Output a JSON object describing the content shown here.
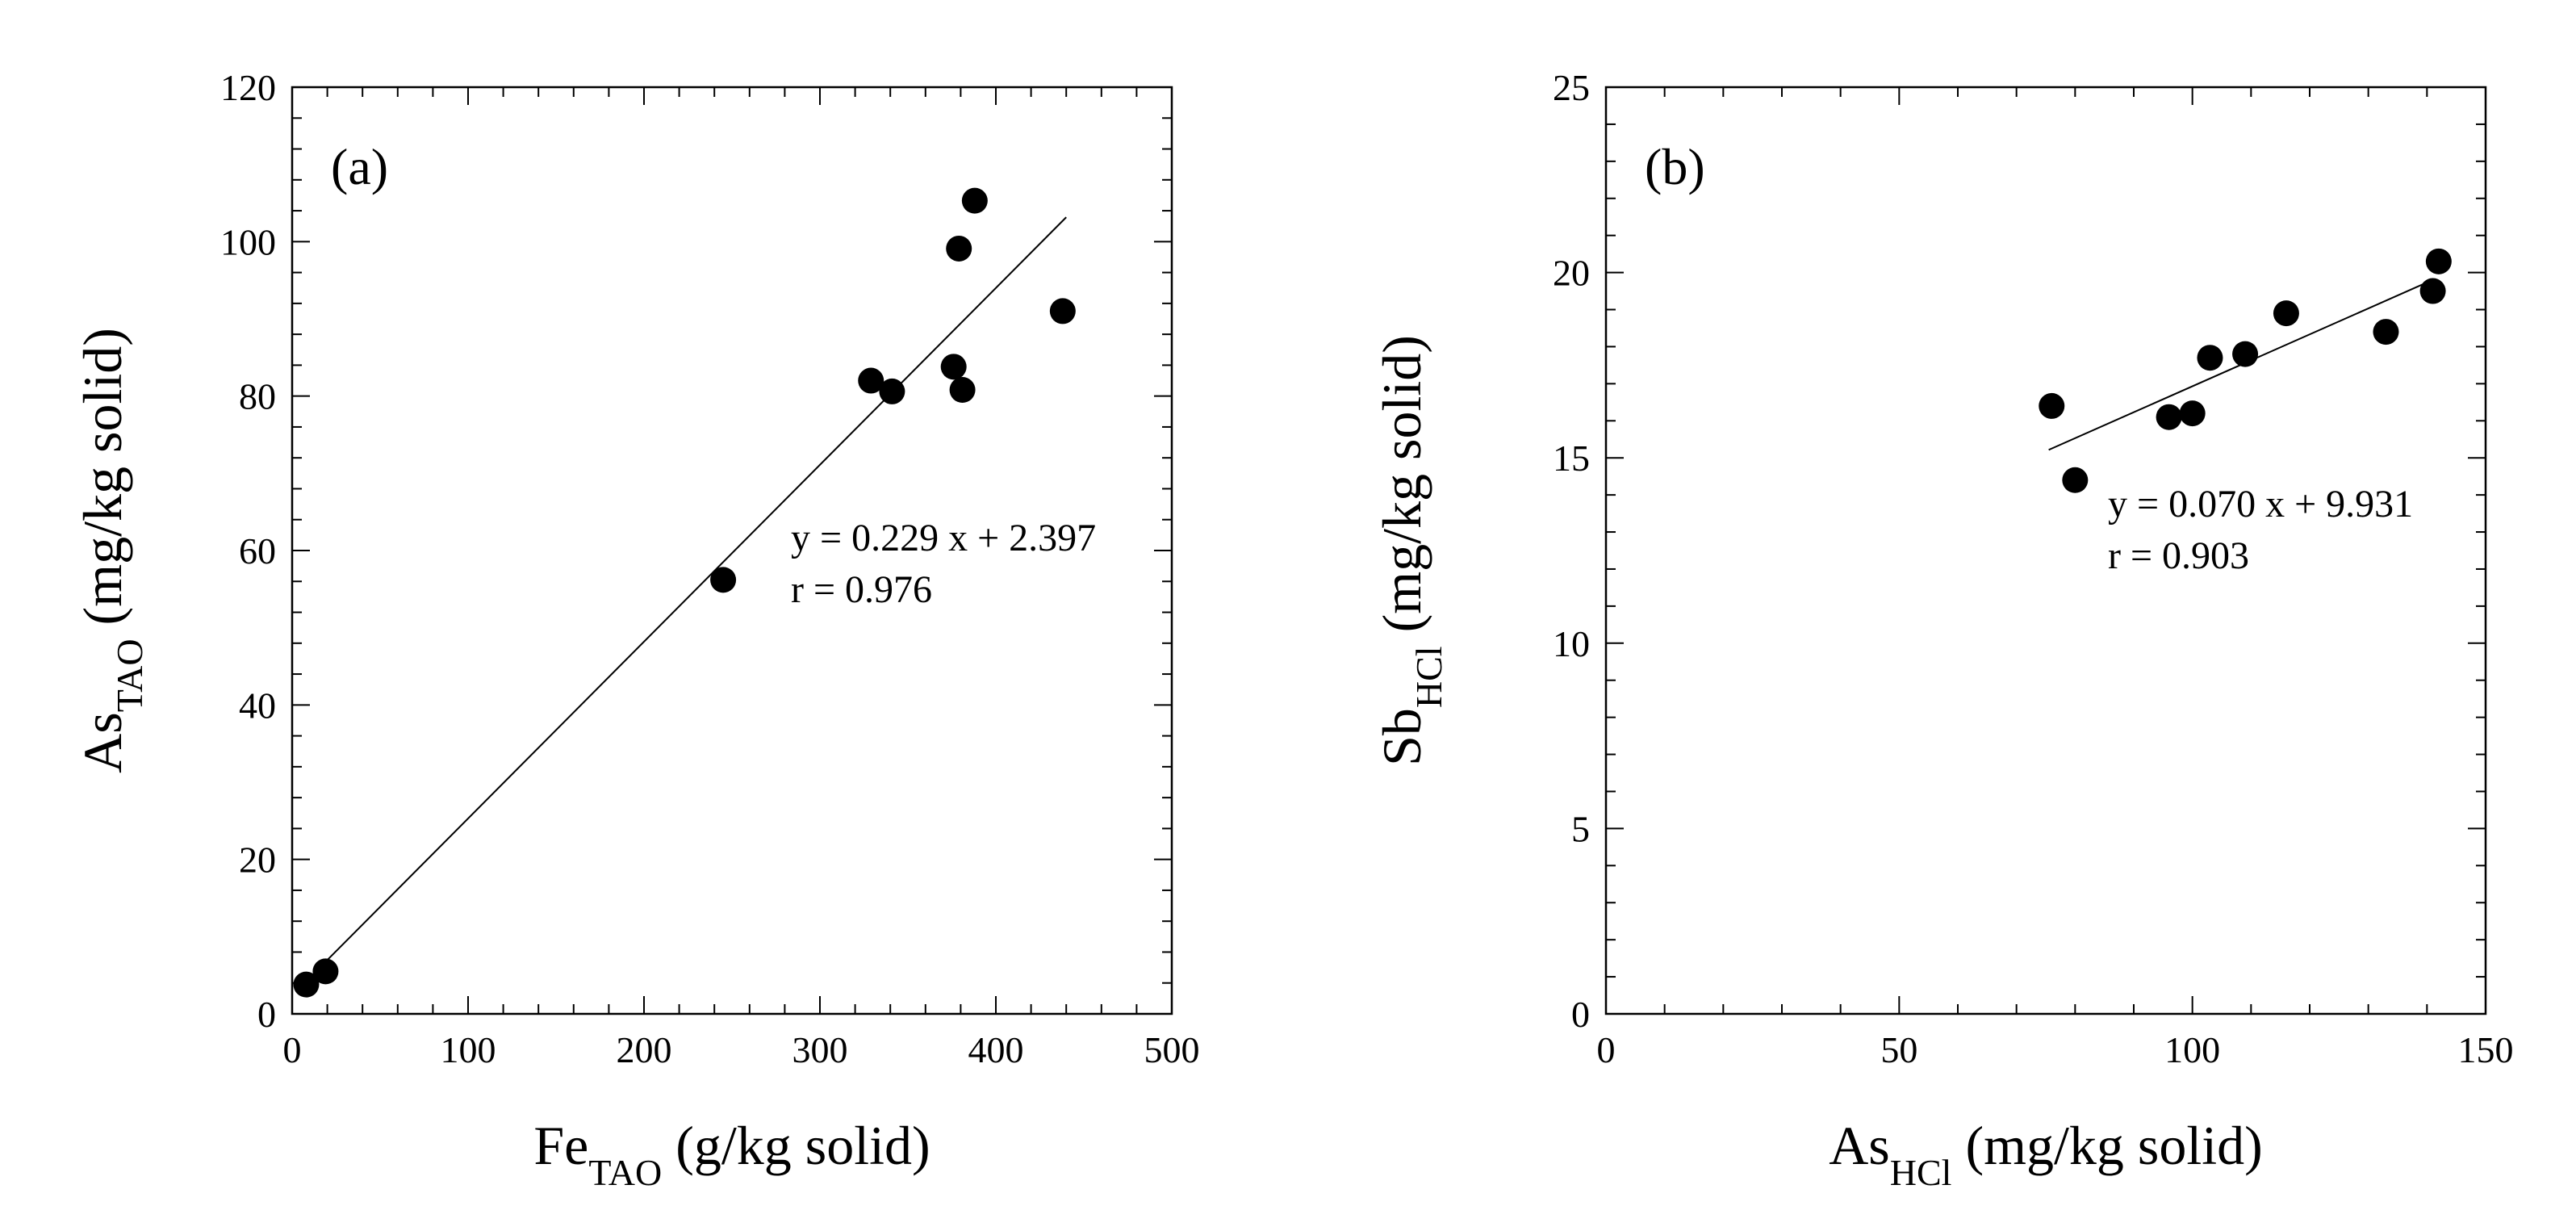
{
  "chart_data": [
    {
      "type": "scatter",
      "panel_label": "(a)",
      "xlabel": {
        "main": "Fe",
        "sub": "TAO",
        "unit": " (g/kg solid)"
      },
      "ylabel": {
        "main": "As",
        "sub": "TAO",
        "unit": " (mg/kg solid)"
      },
      "xlim": [
        0,
        500
      ],
      "ylim": [
        0,
        120
      ],
      "xticks": [
        0,
        100,
        200,
        300,
        400,
        500
      ],
      "yticks": [
        0,
        20,
        40,
        60,
        80,
        100,
        120
      ],
      "xtick_labels": [
        "0",
        "100",
        "200",
        "300",
        "400",
        "500"
      ],
      "ytick_labels": [
        "0",
        "20",
        "40",
        "60",
        "80",
        "100",
        "120"
      ],
      "points": {
        "x": [
          8,
          19,
          245,
          329,
          341,
          376,
          381,
          379,
          388,
          438
        ],
        "y": [
          3.8,
          5.5,
          56.2,
          82.0,
          80.6,
          83.8,
          80.8,
          99.1,
          105.3,
          91.0
        ]
      },
      "fit": {
        "slope": 0.229,
        "intercept": 2.397,
        "x_range": [
          15,
          440
        ]
      },
      "annotation": [
        "y = 0.229 x + 2.397",
        "r = 0.976"
      ]
    },
    {
      "type": "scatter",
      "panel_label": "(b)",
      "xlabel": {
        "main": "As",
        "sub": "HCl",
        "unit": " (mg/kg solid)"
      },
      "ylabel": {
        "main": "Sb",
        "sub": "HCl",
        "unit": " (mg/kg solid)"
      },
      "xlim": [
        0,
        150
      ],
      "ylim": [
        0,
        25
      ],
      "xticks": [
        0,
        50,
        100,
        150
      ],
      "yticks": [
        0,
        5,
        10,
        15,
        20,
        25
      ],
      "xtick_labels": [
        "0",
        "50",
        "100",
        "150"
      ],
      "ytick_labels": [
        "0",
        "5",
        "10",
        "15",
        "20",
        "25"
      ],
      "points": {
        "x": [
          76,
          80,
          96,
          100,
          103,
          109,
          116,
          133,
          141,
          142
        ],
        "y": [
          16.4,
          14.4,
          16.1,
          16.2,
          17.7,
          17.8,
          18.9,
          18.4,
          19.5,
          20.3
        ]
      },
      "fit": {
        "slope": 0.07,
        "intercept": 9.931,
        "x_range": [
          75.5,
          140.5
        ]
      },
      "annotation": [
        "y = 0.070 x + 9.931",
        "r = 0.903"
      ]
    }
  ]
}
